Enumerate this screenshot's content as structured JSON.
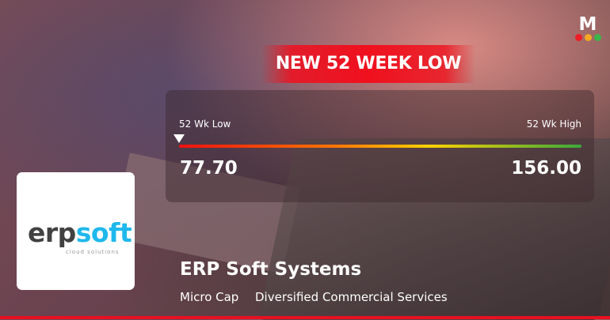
{
  "headline": "NEW 52 WEEK LOW",
  "range": {
    "low_label": "52 Wk Low",
    "high_label": "52 Wk High",
    "low_value": "77.70",
    "high_value": "156.00",
    "current_position_percent": 0
  },
  "company": {
    "name": "ERP Soft Systems",
    "cap": "Micro Cap",
    "sector": "Diversified Commercial Services"
  },
  "logo": {
    "part1": "erp",
    "part2": "soft",
    "tagline": "cloud solutions"
  },
  "brand": {
    "letter": "M",
    "dot_colors": [
      "#ee1c25",
      "#f5a623",
      "#3cb54a"
    ]
  },
  "colors": {
    "accent": "#f0101e",
    "bar_start": "#f01010",
    "bar_mid": "#ffd200",
    "bar_end": "#3aa83a"
  }
}
